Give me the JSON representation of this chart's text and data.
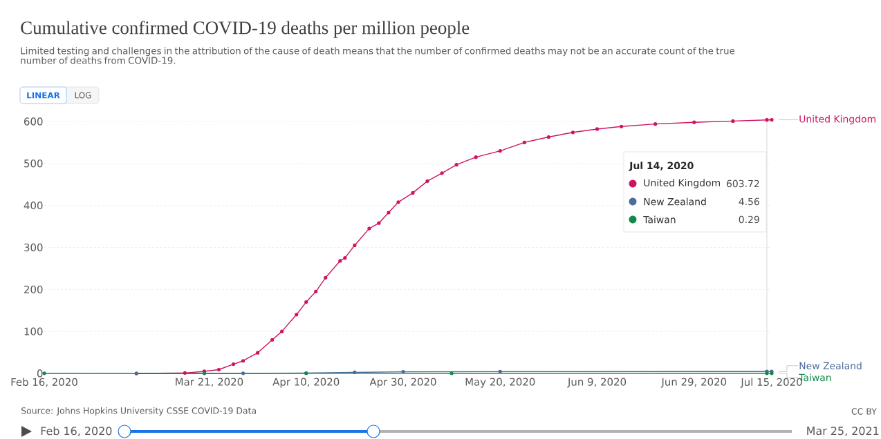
{
  "chart_data": {
    "type": "line",
    "title": "Cumulative confirmed COVID-19 deaths per million people",
    "subtitle": "Limited testing and challenges in the attribution of the cause of death means that the number of confirmed deaths may not be an accurate count of the true number of deaths from COVID-19.",
    "xlim": [
      "2020-02-16",
      "2020-07-15"
    ],
    "xticks": [
      {
        "value": "2020-02-16",
        "label": "Feb 16, 2020"
      },
      {
        "value": "2020-03-21",
        "label": "Mar 21, 2020"
      },
      {
        "value": "2020-04-10",
        "label": "Apr 10, 2020"
      },
      {
        "value": "2020-04-30",
        "label": "Apr 30, 2020"
      },
      {
        "value": "2020-05-20",
        "label": "May 20, 2020"
      },
      {
        "value": "2020-06-09",
        "label": "Jun 9, 2020"
      },
      {
        "value": "2020-06-29",
        "label": "Jun 29, 2020"
      },
      {
        "value": "2020-07-15",
        "label": "Jul 15, 2020"
      }
    ],
    "ylim": [
      0,
      610
    ],
    "yticks": [
      0,
      100,
      200,
      300,
      400,
      500,
      600
    ],
    "grid": "y",
    "marker": "circle",
    "legend": "top right",
    "series": [
      {
        "name": "United Kingdom",
        "color": "#ce1461",
        "x": [
          "2020-03-06",
          "2020-03-16",
          "2020-03-20",
          "2020-03-23",
          "2020-03-26",
          "2020-03-28",
          "2020-03-31",
          "2020-04-03",
          "2020-04-05",
          "2020-04-08",
          "2020-04-10",
          "2020-04-12",
          "2020-04-14",
          "2020-04-17",
          "2020-04-18",
          "2020-04-20",
          "2020-04-23",
          "2020-04-25",
          "2020-04-27",
          "2020-04-29",
          "2020-05-02",
          "2020-05-05",
          "2020-05-08",
          "2020-05-11",
          "2020-05-15",
          "2020-05-20",
          "2020-05-25",
          "2020-05-30",
          "2020-06-04",
          "2020-06-09",
          "2020-06-14",
          "2020-06-21",
          "2020-06-29",
          "2020-07-07",
          "2020-07-14",
          "2020-07-15"
        ],
        "values": [
          0,
          1,
          5,
          9,
          22,
          30,
          49,
          80,
          100,
          140,
          170,
          195,
          228,
          268,
          275,
          305,
          345,
          358,
          383,
          408,
          430,
          458,
          477,
          497,
          515,
          530,
          550,
          563,
          574,
          582,
          588,
          594,
          598,
          601,
          603.72,
          604
        ]
      },
      {
        "name": "New Zealand",
        "color": "#4c6a9c",
        "x": [
          "2020-03-06",
          "2020-03-28",
          "2020-04-10",
          "2020-04-20",
          "2020-04-30",
          "2020-05-20",
          "2020-07-14",
          "2020-07-15"
        ],
        "values": [
          0,
          0.2,
          0.8,
          2.5,
          3.9,
          4.3,
          4.56,
          4.56
        ]
      },
      {
        "name": "Taiwan",
        "color": "#12884a",
        "x": [
          "2020-02-16",
          "2020-03-20",
          "2020-04-10",
          "2020-05-10",
          "2020-07-14",
          "2020-07-15"
        ],
        "values": [
          0.04,
          0.04,
          0.21,
          0.29,
          0.29,
          0.29
        ]
      }
    ],
    "ref_lines": [
      {
        "axis": "x",
        "value": "2020-07-14",
        "color": "#cccccc"
      }
    ],
    "annotations": [
      "Jul 14, 2020",
      "603.72",
      "4.56",
      "0.29",
      "Source: Johns Hopkins University CSSE COVID-19 Data",
      "CC BY",
      "LINEAR",
      "LOG",
      "Feb 16, 2020",
      "Mar 25, 2021"
    ]
  }
}
